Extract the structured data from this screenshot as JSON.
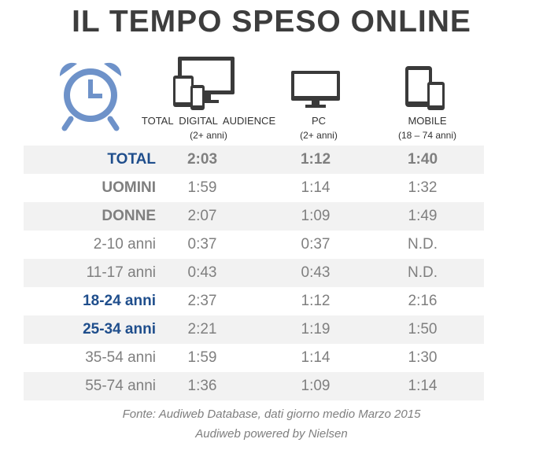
{
  "title": "IL TEMPO SPESO ONLINE",
  "icons": [
    "alarm-clock-icon",
    "multi-device-icon",
    "monitor-icon",
    "tablet-phone-icon"
  ],
  "colors": {
    "accent_blue": "#1f4e8c",
    "clock_blue": "#6e92c9",
    "text_gray": "#7f7f7f",
    "icon_dark": "#3a3a3a"
  },
  "columns": [
    {
      "label": "TOTAL  DIGITAL  AUDIENCE",
      "sub": "(2+ anni)"
    },
    {
      "label": "PC",
      "sub": "(2+ anni)"
    },
    {
      "label": "MOBILE",
      "sub": "(18 – 74 anni)"
    }
  ],
  "rows": [
    {
      "label": "TOTAL",
      "values": [
        "2:03",
        "1:12",
        "1:40"
      ]
    },
    {
      "label": "UOMINI",
      "values": [
        "1:59",
        "1:14",
        "1:32"
      ]
    },
    {
      "label": "DONNE",
      "values": [
        "2:07",
        "1:09",
        "1:49"
      ]
    },
    {
      "label": "2-10 anni",
      "values": [
        "0:37",
        "0:37",
        "N.D."
      ]
    },
    {
      "label": "11-17 anni",
      "values": [
        "0:43",
        "0:43",
        "N.D."
      ]
    },
    {
      "label": "18-24 anni",
      "values": [
        "2:37",
        "1:12",
        "2:16"
      ]
    },
    {
      "label": "25-34 anni",
      "values": [
        "2:21",
        "1:19",
        "1:50"
      ]
    },
    {
      "label": "35-54 anni",
      "values": [
        "1:59",
        "1:14",
        "1:30"
      ]
    },
    {
      "label": "55-74 anni",
      "values": [
        "1:36",
        "1:09",
        "1:14"
      ]
    }
  ],
  "source_line1": "Fonte: Audiweb Database, dati giorno medio Marzo 2015",
  "source_line2": "Audiweb powered by Nielsen"
}
